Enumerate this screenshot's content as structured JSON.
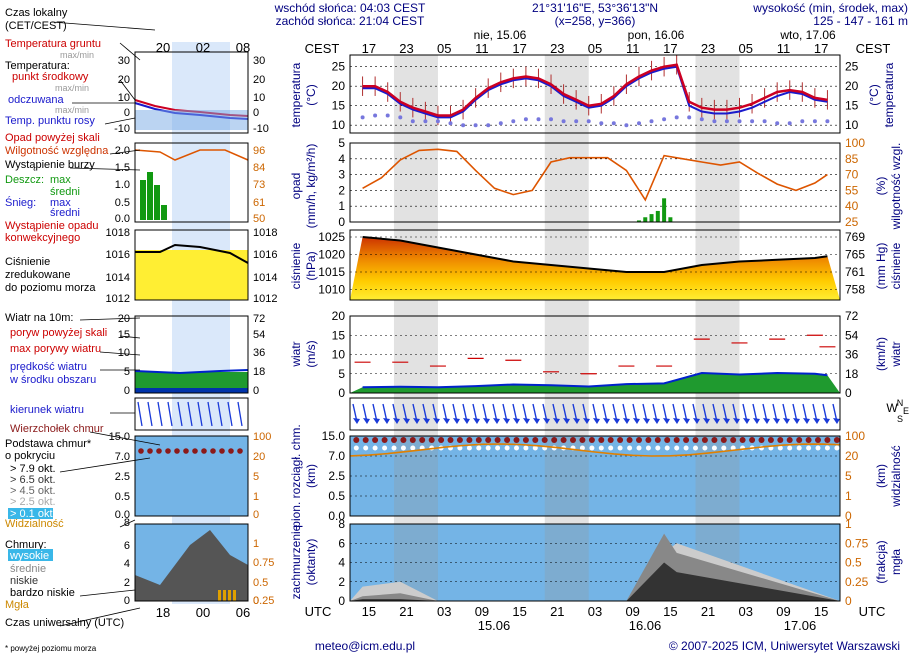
{
  "header": {
    "sunrise": "wschód słońca: 04:03 CEST",
    "sunset": "zachód słońca: 21:04 CEST",
    "coords": "21°31'16\"E, 53°36'13\"N",
    "grid": "(x=258, y=366)",
    "elevation_label": "wysokość (min, środek, max)",
    "elevation_values": "125 - 147 - 161 m"
  },
  "time_axis": {
    "top_label": "CEST",
    "bottom_label": "UTC",
    "cest_ticks": [
      "17",
      "23",
      "05",
      "11",
      "17",
      "23",
      "05",
      "11",
      "17",
      "23",
      "05",
      "11",
      "17"
    ],
    "utc_ticks": [
      "15",
      "21",
      "03",
      "09",
      "15",
      "21",
      "03",
      "09",
      "15",
      "21",
      "03",
      "09",
      "15"
    ],
    "dates_top": [
      "nie, 15.06",
      "pon, 16.06",
      "wto, 17.06"
    ],
    "dates_bottom": [
      "15.06",
      "16.06",
      "17.06"
    ]
  },
  "legend": {
    "time_local": "Czas lokalny",
    "time_local_sub": "(CET/CEST)",
    "ticks_top": [
      "20",
      "02",
      "08"
    ],
    "ticks_bottom": [
      "18",
      "00",
      "06"
    ],
    "time_utc": "Czas uniwersalny (UTC)",
    "footnote": "* powyżej poziomu morza",
    "temp_ground": "Temperatura gruntu",
    "temp_ground_sub": "max/min",
    "temp_title": "Temperatura:",
    "temp_mid": "punkt środkowy",
    "temp_maxmin": "max/min",
    "temp_felt": "odczuwana",
    "temp_felt_maxmin": "max/min",
    "temp_dew": "Temp. punktu rosy",
    "precip_above": "Opad powyżej skali",
    "humidity": "Wilgotność względna",
    "storm": "Wystąpienie burzy",
    "rain": "Deszcz:",
    "rain_max": "max",
    "rain_mean": "średni",
    "snow": "Śnieg:",
    "snow_max": "max",
    "snow_mean": "średni",
    "precip_occ1": "Wystąpienie opadu",
    "precip_occ2": "konwekcyjnego",
    "pressure1": "Ciśnienie",
    "pressure2": "zredukowane",
    "pressure3": "do poziomu morza",
    "wind_title": "Wiatr na 10m:",
    "gust_above": "poryw powyżej skali",
    "gust_max": "max porywy wiatru",
    "wind_speed1": "prędkość wiatru",
    "wind_speed2": "w środku obszaru",
    "wind_dir": "kierunek wiatru",
    "cloud_top": "Wierzchołek chmur",
    "cloud_base1": "Podstawa chmur*",
    "cloud_base2": "o pokryciu",
    "okt": [
      "> 7.9 okt.",
      "> 6.5 okt.",
      "> 4.5 okt.",
      "> 2.5 okt.",
      "> 0.1 okt."
    ],
    "visibility": "Widzialność",
    "clouds": "Chmury:",
    "cl_high": "wysokie",
    "cl_mid": "średnie",
    "cl_low": "niskie",
    "cl_vlow": "bardzo niskie",
    "fog": "Mgła",
    "temp_ticks": [
      "30",
      "20",
      "10",
      "0",
      "-10"
    ],
    "precip_ticks": [
      "2.0",
      "1.5",
      "1.0",
      "0.5",
      "0.0"
    ],
    "hum_ticks": [
      "96",
      "84",
      "73",
      "61",
      "50"
    ],
    "pres_ticks": [
      "1018",
      "1016",
      "1014",
      "1012"
    ],
    "wind_ticks_l": [
      "20",
      "15",
      "10",
      "5",
      "0"
    ],
    "wind_ticks_r": [
      "72",
      "54",
      "36",
      "18",
      "0"
    ],
    "cb_ticks": [
      "15.0",
      "7.0",
      "2.5",
      "0.5",
      "0.0"
    ],
    "vis_ticks": [
      "100",
      "20",
      "5",
      "1",
      "0"
    ],
    "cl_ticks_l": [
      "8",
      "6",
      "4",
      "2",
      "0"
    ],
    "cl_ticks_r": [
      "1",
      "0.75",
      "0.5",
      "0.25",
      "0"
    ]
  },
  "panels": {
    "temperature": {
      "ylabel": "temperatura",
      "unit": "(°C)",
      "ylabel_r": "temperatura",
      "unit_r": "(°C)",
      "ticks": [
        "25",
        "20",
        "15",
        "10"
      ]
    },
    "precip": {
      "ylabel": "opad",
      "unit": "(mm/h, kg/m²/h)",
      "ylabel_r": "wilgotność wzgl.",
      "unit_r": "(%)",
      "ticks_l": [
        "5",
        "4",
        "3",
        "2",
        "1",
        "0"
      ],
      "ticks_r": [
        "100",
        "85",
        "70",
        "55",
        "40",
        "25"
      ]
    },
    "pressure": {
      "ylabel": "ciśnienie",
      "unit": "(hPa)",
      "ylabel_r": "ciśnienie",
      "unit_r": "(mm Hg)",
      "ticks_l": [
        "1025",
        "1020",
        "1015",
        "1010"
      ],
      "ticks_r": [
        "769",
        "765",
        "761",
        "758"
      ]
    },
    "wind": {
      "ylabel": "wiatr",
      "unit": "(m/s)",
      "ylabel_r": "wiatr",
      "unit_r": "(km/h)",
      "ticks_l": [
        "20",
        "15",
        "10",
        "5",
        "0"
      ],
      "ticks_r": [
        "72",
        "54",
        "36",
        "18",
        "0"
      ]
    },
    "direction": {
      "compass_w": "W",
      "compass_n": "N",
      "compass_s": "S",
      "compass_e": "E"
    },
    "cloudbase": {
      "ylabel": "pion. rozciągł. chm.",
      "unit": "(km)",
      "ylabel_r": "widzialność",
      "unit_r": "(km)",
      "ticks_l": [
        "15.0",
        "7.0",
        "2.5",
        "0.5",
        "0.0"
      ],
      "ticks_r": [
        "100",
        "20",
        "5",
        "1",
        "0"
      ]
    },
    "cloudcover": {
      "ylabel": "zachmurzenie",
      "unit": "(oktanty)",
      "ylabel_r": "mgła",
      "unit_r": "(frakcja)",
      "ticks_l": [
        "8",
        "6",
        "4",
        "2",
        "0"
      ],
      "ticks_r": [
        "1",
        "0.75",
        "0.5",
        "0.25",
        "0"
      ]
    }
  },
  "footer": {
    "email": "meteo@icm.edu.pl",
    "copyright": "© 2007-2025 ICM, Uniwersytet Warszawski"
  },
  "colors": {
    "red": "#cc0000",
    "blue": "#1a1acc",
    "orange": "#cc6600",
    "navy": "#000080",
    "dew": "#7777dd"
  },
  "chart_data": [
    {
      "type": "line",
      "title": "temperatura (°C)",
      "x_hours_cest": [
        16,
        18,
        20,
        22,
        0,
        2,
        4,
        6,
        8,
        10,
        12,
        14,
        16,
        18,
        20,
        22,
        0,
        2,
        4,
        6,
        8,
        10,
        12,
        14,
        16,
        18,
        20,
        22,
        0,
        2,
        4,
        6,
        8,
        10,
        12,
        14,
        16,
        18
      ],
      "series": [
        {
          "name": "temperatura",
          "values": [
            20,
            20,
            18.5,
            16,
            14.5,
            13.5,
            12.5,
            12.5,
            14,
            17,
            19.5,
            21,
            22,
            22.5,
            22,
            20.5,
            18,
            16.5,
            15,
            15.5,
            17.5,
            20.5,
            22.5,
            24,
            25,
            25.5,
            16,
            14.5,
            14,
            14,
            14.5,
            15.5,
            17,
            18.5,
            19,
            18.5,
            17,
            16.5
          ]
        },
        {
          "name": "odczuwana",
          "values": [
            19.5,
            19.5,
            18,
            15.5,
            14,
            13,
            12,
            12,
            13.5,
            16.5,
            19,
            20.5,
            21.5,
            22,
            21.5,
            20,
            17.5,
            16,
            14.5,
            15,
            17,
            20,
            22,
            23.5,
            24.5,
            25,
            15,
            13.5,
            13,
            13,
            13.5,
            14.5,
            16,
            17.5,
            18.5,
            18,
            16.5,
            16
          ]
        },
        {
          "name": "punkt rosy",
          "values": [
            12,
            12.5,
            12.5,
            12,
            11,
            11,
            11,
            10.5,
            10,
            10,
            10,
            10.5,
            11,
            11.5,
            11.5,
            11.5,
            11,
            11,
            11,
            10.5,
            10.5,
            10,
            10.5,
            11,
            11.5,
            12,
            12,
            11.5,
            11,
            11,
            11,
            11,
            11,
            10.5,
            10.5,
            11,
            11,
            11
          ]
        }
      ],
      "ylim": [
        8,
        28
      ]
    },
    {
      "type": "line",
      "title": "wilgotność względna (%)",
      "x_hours_cest": [
        16,
        19,
        22,
        1,
        4,
        7,
        10,
        13,
        16,
        19,
        22,
        1,
        4,
        7,
        10,
        13,
        16,
        19,
        22,
        1,
        4,
        7,
        10,
        13,
        16,
        18
      ],
      "values": [
        57,
        67,
        84,
        93,
        94,
        92,
        74,
        57,
        51,
        55,
        82,
        86,
        86,
        86,
        74,
        46,
        88,
        85,
        82,
        79,
        82,
        71,
        61,
        55,
        62,
        70
      ],
      "ylim": [
        25,
        100
      ]
    },
    {
      "type": "bar",
      "title": "opad (mm/h)",
      "x_hours_cest": [
        12,
        13,
        14,
        15,
        16,
        17
      ],
      "values": [
        0.1,
        0.3,
        0.5,
        0.7,
        1.5,
        0.3
      ]
    },
    {
      "type": "line",
      "title": "ciśnienie (hPa)",
      "x_hours_cest": [
        16,
        22,
        4,
        10,
        16,
        22,
        4,
        10,
        16,
        22,
        4,
        10,
        16,
        18
      ],
      "values": [
        1025,
        1024,
        1022,
        1020,
        1018,
        1017,
        1016,
        1015,
        1015,
        1017,
        1018,
        1018.5,
        1019,
        1019.5
      ],
      "ylim": [
        1007,
        1027
      ]
    },
    {
      "type": "line",
      "title": "wiatr (m/s)",
      "x_hours_cest": [
        16,
        22,
        4,
        10,
        16,
        22,
        4,
        10,
        16,
        22,
        4,
        10,
        16,
        18
      ],
      "series": [
        {
          "name": "prędkość",
          "values": [
            1.5,
            1.6,
            1.5,
            1.8,
            2.2,
            2.0,
            1.7,
            2.3,
            2.5,
            5.2,
            4.8,
            5.2,
            5.0,
            4.6
          ]
        },
        {
          "name": "porywy",
          "values": [
            8,
            8,
            7,
            9,
            8.5,
            5.5,
            5,
            7,
            7,
            14,
            13,
            14,
            15,
            12
          ]
        }
      ],
      "ylim": [
        0,
        20
      ]
    },
    {
      "type": "area",
      "title": "zachmurzenie (oktanty)",
      "x_hours_cest": [
        16,
        22,
        4,
        10,
        16,
        22,
        4,
        10,
        16,
        18
      ],
      "series": [
        {
          "name": "niskie",
          "values": [
            0.2,
            0.2,
            0,
            0,
            0,
            0,
            0,
            0,
            4,
            3
          ]
        },
        {
          "name": "średnie",
          "values": [
            0.5,
            0.8,
            0,
            0,
            0,
            0,
            0,
            0,
            7,
            5
          ]
        },
        {
          "name": "wysokie",
          "values": [
            1.5,
            2,
            0,
            0,
            0,
            0,
            0,
            0,
            5,
            6
          ]
        }
      ],
      "ylim": [
        0,
        8
      ]
    }
  ]
}
